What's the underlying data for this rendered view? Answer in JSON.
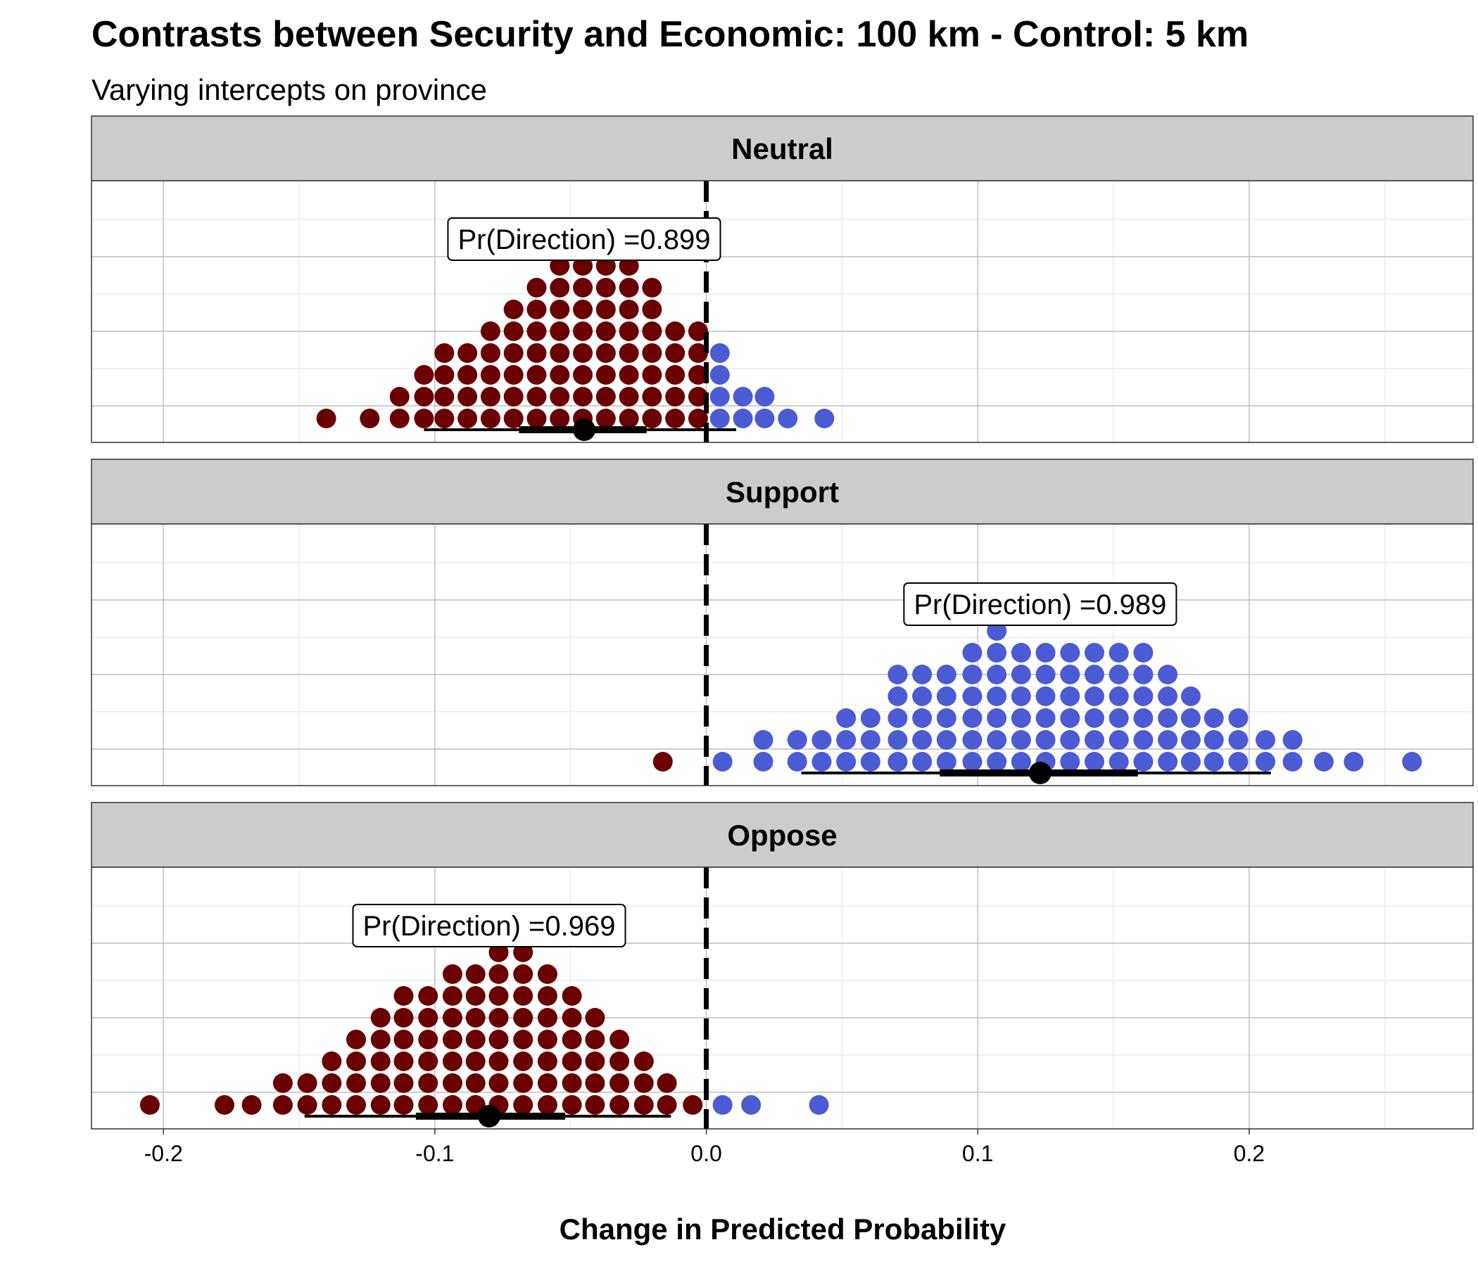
{
  "chart_data": {
    "type": "scatter",
    "subtype": "quantile-dotplot",
    "title": "Contrasts between Security and Economic: 100 km - Control: 5 km",
    "subtitle": "Varying intercepts on province",
    "xlabel": "Change in Predicted Probability",
    "ylabel": "",
    "xlim": [
      -0.2265,
      0.2825
    ],
    "x_ticks": [
      -0.2,
      -0.1,
      0.0,
      0.1,
      0.2
    ],
    "x_tick_labels": [
      "-0.2",
      "-0.1",
      "0.0",
      "0.1",
      "0.2"
    ],
    "reference_line": 0.0,
    "grid": true,
    "colors": {
      "negative": "#6b0000",
      "positive": "#4a5bd4",
      "interval": "#000000",
      "strip_fill": "#cccccc",
      "reference_line": "#000000"
    },
    "panels": [
      {
        "label": "Neutral",
        "annotation": "Pr(Direction) =0.899",
        "point_estimate": -0.045,
        "interval_inner": [
          -0.069,
          -0.022
        ],
        "interval_outer": [
          -0.104,
          0.011
        ],
        "dot_columns": [
          {
            "x": -0.14,
            "count": 1
          },
          {
            "x": -0.124,
            "count": 1
          },
          {
            "x": -0.113,
            "count": 2
          },
          {
            "x": -0.104,
            "count": 3
          },
          {
            "x": -0.0965,
            "count": 4
          },
          {
            "x": -0.088,
            "count": 4
          },
          {
            "x": -0.0795,
            "count": 5
          },
          {
            "x": -0.071,
            "count": 6
          },
          {
            "x": -0.0625,
            "count": 7
          },
          {
            "x": -0.054,
            "count": 8
          },
          {
            "x": -0.0455,
            "count": 8
          },
          {
            "x": -0.037,
            "count": 8
          },
          {
            "x": -0.0285,
            "count": 8
          },
          {
            "x": -0.02,
            "count": 7
          },
          {
            "x": -0.0115,
            "count": 5
          },
          {
            "x": -0.003,
            "count": 5
          },
          {
            "x": 0.005,
            "count": 4
          },
          {
            "x": 0.0135,
            "count": 2
          },
          {
            "x": 0.0215,
            "count": 2
          },
          {
            "x": 0.03,
            "count": 1
          },
          {
            "x": 0.0435,
            "count": 1
          }
        ]
      },
      {
        "label": "Support",
        "annotation": "Pr(Direction) =0.989",
        "point_estimate": 0.123,
        "interval_inner": [
          0.086,
          0.159
        ],
        "interval_outer": [
          0.035,
          0.208
        ],
        "dot_columns": [
          {
            "x": -0.016,
            "count": 1
          },
          {
            "x": 0.006,
            "count": 1
          },
          {
            "x": 0.021,
            "count": 2
          },
          {
            "x": 0.0335,
            "count": 2
          },
          {
            "x": 0.0425,
            "count": 2
          },
          {
            "x": 0.0515,
            "count": 3
          },
          {
            "x": 0.0605,
            "count": 3
          },
          {
            "x": 0.0705,
            "count": 5
          },
          {
            "x": 0.0795,
            "count": 5
          },
          {
            "x": 0.0885,
            "count": 5
          },
          {
            "x": 0.098,
            "count": 6
          },
          {
            "x": 0.107,
            "count": 7
          },
          {
            "x": 0.116,
            "count": 6
          },
          {
            "x": 0.125,
            "count": 6
          },
          {
            "x": 0.134,
            "count": 6
          },
          {
            "x": 0.143,
            "count": 6
          },
          {
            "x": 0.152,
            "count": 6
          },
          {
            "x": 0.161,
            "count": 6
          },
          {
            "x": 0.17,
            "count": 5
          },
          {
            "x": 0.1785,
            "count": 4
          },
          {
            "x": 0.187,
            "count": 3
          },
          {
            "x": 0.196,
            "count": 3
          },
          {
            "x": 0.206,
            "count": 2
          },
          {
            "x": 0.216,
            "count": 2
          },
          {
            "x": 0.2275,
            "count": 1
          },
          {
            "x": 0.2385,
            "count": 1
          },
          {
            "x": 0.26,
            "count": 1
          }
        ]
      },
      {
        "label": "Oppose",
        "annotation": "Pr(Direction) =0.969",
        "point_estimate": -0.08,
        "interval_inner": [
          -0.107,
          -0.052
        ],
        "interval_outer": [
          -0.148,
          -0.013
        ],
        "dot_columns": [
          {
            "x": -0.205,
            "count": 1
          },
          {
            "x": -0.1775,
            "count": 1
          },
          {
            "x": -0.1675,
            "count": 1
          },
          {
            "x": -0.156,
            "count": 2
          },
          {
            "x": -0.147,
            "count": 2
          },
          {
            "x": -0.138,
            "count": 3
          },
          {
            "x": -0.129,
            "count": 4
          },
          {
            "x": -0.12,
            "count": 5
          },
          {
            "x": -0.1115,
            "count": 6
          },
          {
            "x": -0.1025,
            "count": 6
          },
          {
            "x": -0.0935,
            "count": 7
          },
          {
            "x": -0.085,
            "count": 7
          },
          {
            "x": -0.0765,
            "count": 8
          },
          {
            "x": -0.0675,
            "count": 8
          },
          {
            "x": -0.0585,
            "count": 7
          },
          {
            "x": -0.0495,
            "count": 6
          },
          {
            "x": -0.041,
            "count": 5
          },
          {
            "x": -0.032,
            "count": 4
          },
          {
            "x": -0.023,
            "count": 3
          },
          {
            "x": -0.0145,
            "count": 2
          },
          {
            "x": -0.005,
            "count": 1
          },
          {
            "x": 0.006,
            "count": 1
          },
          {
            "x": 0.0165,
            "count": 1
          },
          {
            "x": 0.0415,
            "count": 1
          }
        ]
      }
    ]
  }
}
